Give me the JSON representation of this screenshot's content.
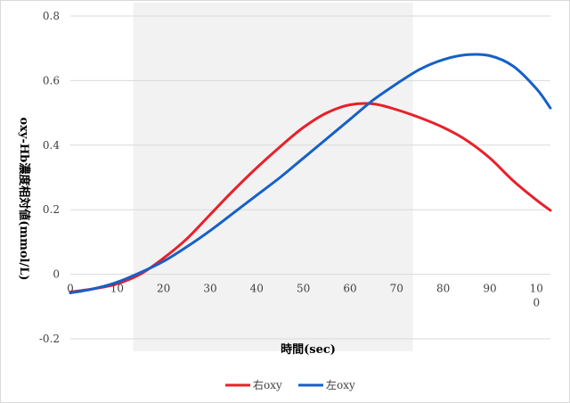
{
  "chart_data": {
    "type": "line",
    "xlabel": "時間(sec)",
    "ylabel": "oxy-Hb濃度相対値(mmol/L)",
    "xlim": [
      0,
      103
    ],
    "ylim": [
      -0.2,
      0.8
    ],
    "x_ticks": [
      "0",
      "10",
      "20",
      "30",
      "40",
      "50",
      "60",
      "70",
      "80",
      "90",
      "100"
    ],
    "y_ticks": [
      "-0.2",
      "0",
      "0.2",
      "0.4",
      "0.6",
      "0.8"
    ],
    "grid": "horizontal",
    "legend_position": "bottom",
    "shaded_x_range": [
      13.5,
      73.5
    ],
    "series": [
      {
        "name": "右oxy",
        "color": "#e8202a",
        "x": [
          0,
          5,
          10,
          15,
          20,
          25,
          30,
          35,
          40,
          45,
          50,
          55,
          60,
          65,
          70,
          75,
          80,
          85,
          90,
          95,
          100,
          103
        ],
        "y": [
          -0.055,
          -0.045,
          -0.03,
          0.0,
          0.05,
          0.11,
          0.185,
          0.26,
          0.33,
          0.395,
          0.455,
          0.5,
          0.525,
          0.528,
          0.51,
          0.485,
          0.455,
          0.415,
          0.36,
          0.29,
          0.23,
          0.198
        ]
      },
      {
        "name": "左oxy",
        "color": "#1560c8",
        "x": [
          0,
          5,
          10,
          15,
          20,
          25,
          30,
          35,
          40,
          45,
          50,
          55,
          60,
          65,
          70,
          75,
          80,
          85,
          90,
          95,
          100,
          103
        ],
        "y": [
          -0.058,
          -0.045,
          -0.025,
          0.005,
          0.04,
          0.085,
          0.135,
          0.19,
          0.245,
          0.3,
          0.36,
          0.42,
          0.48,
          0.54,
          0.59,
          0.635,
          0.665,
          0.68,
          0.677,
          0.645,
          0.575,
          0.515
        ]
      }
    ]
  }
}
